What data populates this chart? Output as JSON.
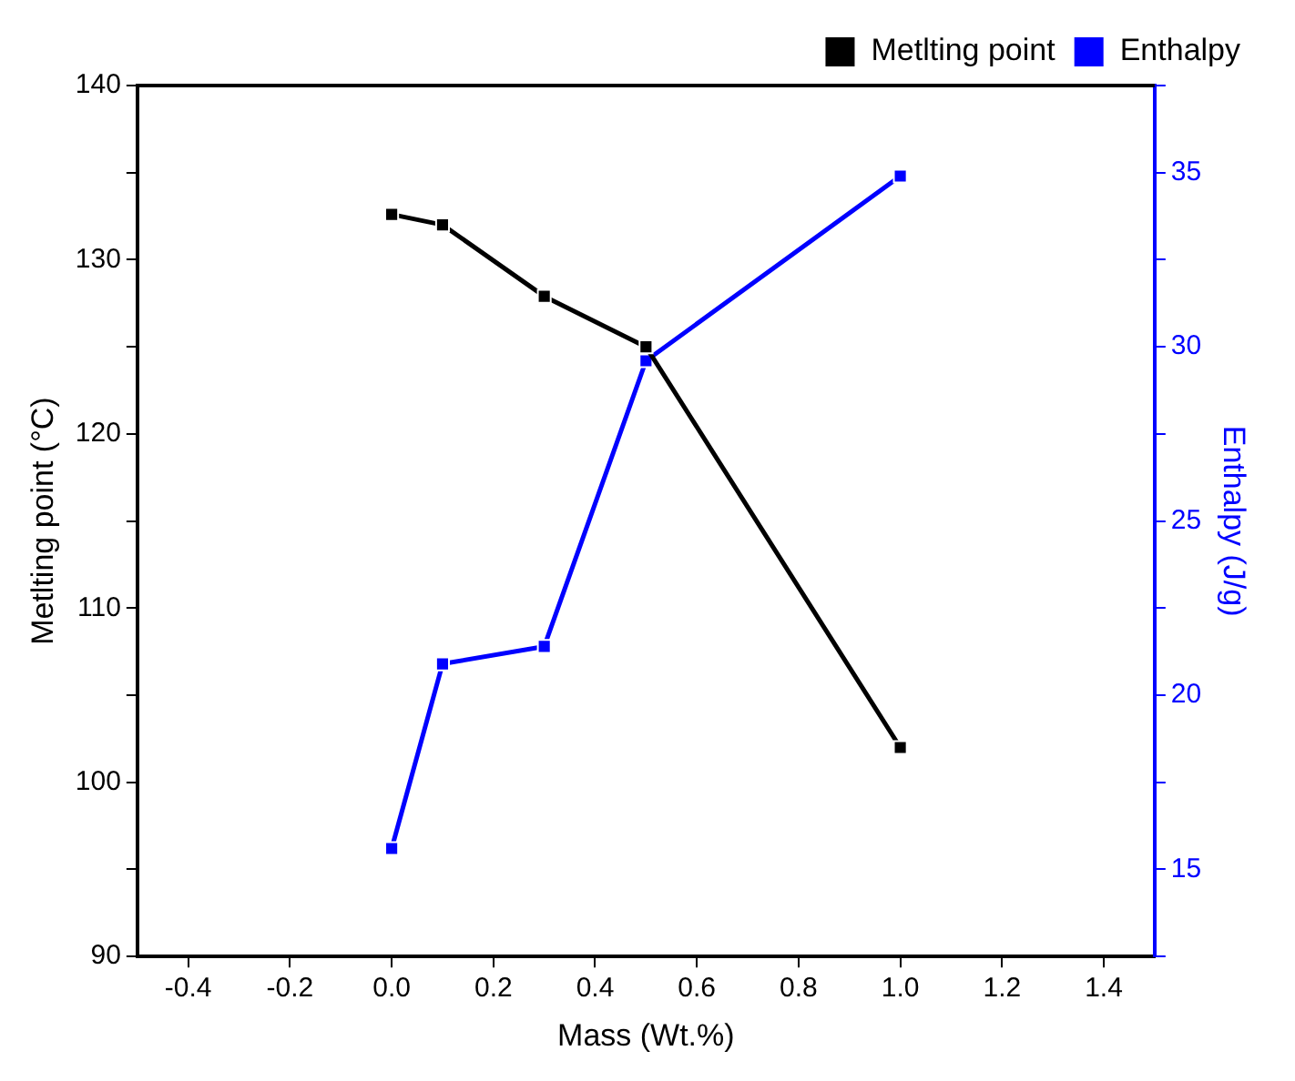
{
  "chart_data": {
    "type": "line",
    "xlabel": "Mass (Wt.%)",
    "ylabel": "Metlting point (°C)",
    "y2label": "Enthalpy (J/g)",
    "x": [
      0,
      0.1,
      0.3,
      0.5,
      1.0
    ],
    "series": [
      {
        "name": "Metlting point",
        "color": "#000000",
        "values": [
          132.6,
          132.0,
          127.9,
          125.0,
          102.0
        ]
      },
      {
        "name": "Enthalpy",
        "color": "#0000ff",
        "axis": "y2",
        "values": [
          15.6,
          20.9,
          21.4,
          29.6,
          34.9
        ]
      }
    ],
    "xlim": [
      -0.5,
      1.5
    ],
    "xticks": [
      -0.4,
      -0.2,
      {
        "value": 0,
        "label": "0.0"
      },
      0.2,
      0.4,
      0.6,
      0.8,
      {
        "value": 1,
        "label": "1.0"
      },
      1.2,
      1.4
    ],
    "ylim": [
      90,
      140
    ],
    "yticks": [
      90,
      {
        "value": 95,
        "label": null
      },
      100,
      {
        "value": 105,
        "label": null
      },
      110,
      {
        "value": 115,
        "label": null
      },
      120,
      {
        "value": 125,
        "label": null
      },
      130,
      {
        "value": 135,
        "label": null
      },
      140
    ],
    "y2lim": [
      12.5,
      37.5
    ],
    "y2ticks": [
      {
        "value": 12.5,
        "label": null
      },
      15,
      {
        "value": 17.5,
        "label": null
      },
      20,
      {
        "value": 22.5,
        "label": null
      },
      25,
      {
        "value": 27.5,
        "label": null
      },
      30,
      {
        "value": 32.5,
        "label": null
      },
      35,
      {
        "value": 37.5,
        "label": null
      }
    ],
    "marker": "square",
    "line_style": "solid",
    "grid": false,
    "legend": "top right"
  }
}
